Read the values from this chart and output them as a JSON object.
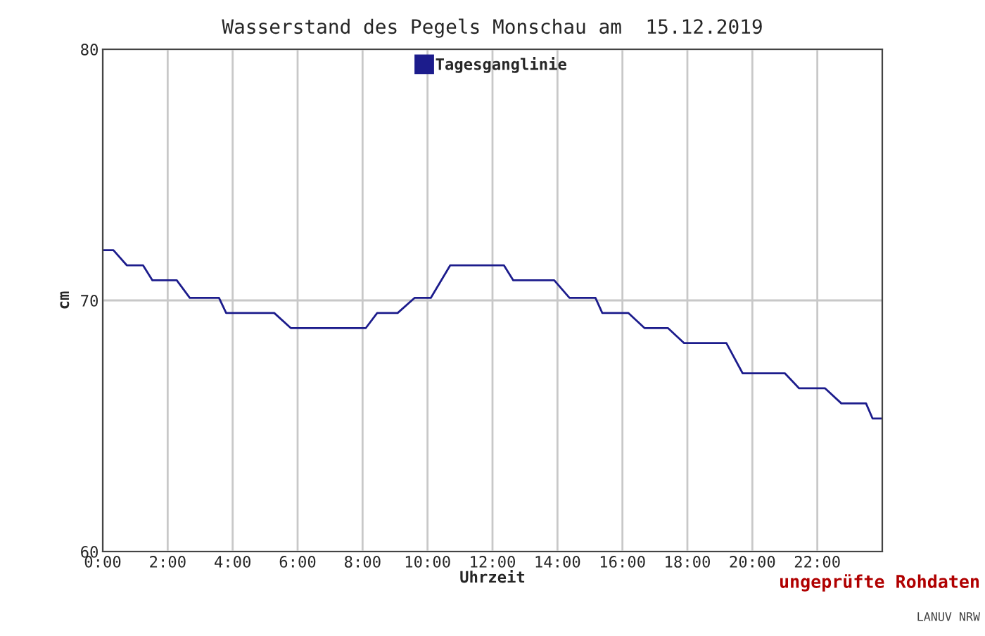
{
  "chart_data": {
    "type": "line",
    "title": "Wasserstand des Pegels Monschau am  15.12.2019",
    "xlabel": "Uhrzeit",
    "ylabel": "cm",
    "x": [
      0,
      0.33,
      0.74,
      1.24,
      1.53,
      2.28,
      2.68,
      3.58,
      3.8,
      5.28,
      5.79,
      8.1,
      8.45,
      9.08,
      9.6,
      10.1,
      10.7,
      12.35,
      12.64,
      13.9,
      14.37,
      15.17,
      15.38,
      16.18,
      16.68,
      17.4,
      17.9,
      19.2,
      19.7,
      21.0,
      21.44,
      22.24,
      22.74,
      23.5,
      23.7,
      24
    ],
    "series": [
      {
        "name": "Tagesganglinie",
        "color": "#1c1c8c",
        "values": [
          72.0,
          72.0,
          71.4,
          71.4,
          70.8,
          70.8,
          70.1,
          70.1,
          69.5,
          69.5,
          68.9,
          68.9,
          69.5,
          69.5,
          70.1,
          70.1,
          71.4,
          71.4,
          70.8,
          70.8,
          70.1,
          70.1,
          69.5,
          69.5,
          68.9,
          68.9,
          68.3,
          68.3,
          67.1,
          67.1,
          66.5,
          66.5,
          65.9,
          65.9,
          65.3,
          65.3
        ]
      }
    ],
    "xlim": [
      0,
      24
    ],
    "ylim": [
      60,
      80
    ],
    "xticks": [
      {
        "value": 0,
        "label": "0:00"
      },
      {
        "value": 2,
        "label": "2:00"
      },
      {
        "value": 4,
        "label": "4:00"
      },
      {
        "value": 6,
        "label": "6:00"
      },
      {
        "value": 8,
        "label": "8:00"
      },
      {
        "value": 10,
        "label": "10:00"
      },
      {
        "value": 12,
        "label": "12:00"
      },
      {
        "value": 14,
        "label": "14:00"
      },
      {
        "value": 16,
        "label": "16:00"
      },
      {
        "value": 18,
        "label": "18:00"
      },
      {
        "value": 20,
        "label": "20:00"
      },
      {
        "value": 22,
        "label": "22:00"
      }
    ],
    "yticks": [
      60,
      70,
      80
    ],
    "grid": true,
    "legend": "top",
    "marker": "none",
    "line_style": "solid",
    "annotations": [
      "ungeprüfte Rohdaten",
      "LANUV NRW"
    ]
  }
}
